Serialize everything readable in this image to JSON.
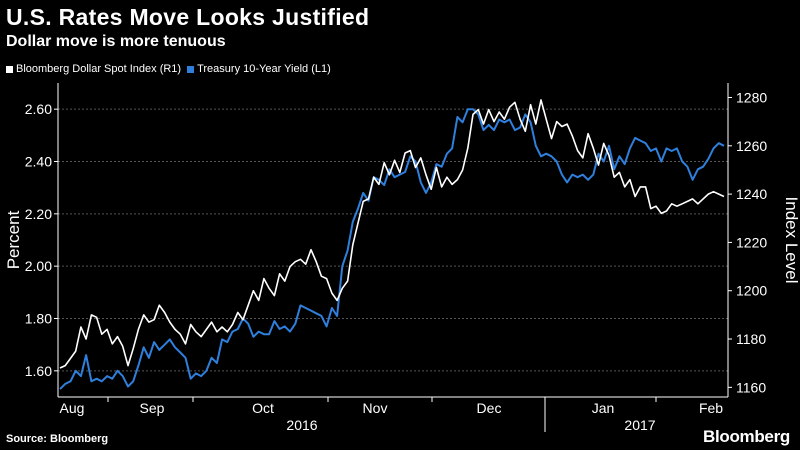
{
  "header": {
    "title": "U.S. Rates Move Looks Justified",
    "subtitle": "Dollar move is more tenuous"
  },
  "footer": {
    "source": "Source: Bloomberg",
    "logo": "Bloomberg"
  },
  "colors": {
    "background": "#000000",
    "dollar": "#ffffff",
    "treasury": "#2f7fdc",
    "grid": "#555555"
  },
  "chart_data": {
    "type": "line",
    "left_axis": {
      "label": "Percent",
      "range": [
        1.5,
        2.7
      ],
      "ticks": [
        "1.60",
        "1.80",
        "2.00",
        "2.20",
        "2.40",
        "2.60"
      ]
    },
    "right_axis": {
      "label": "Index Level",
      "range": [
        1156,
        1286
      ],
      "ticks": [
        "1160",
        "1180",
        "1200",
        "1220",
        "1240",
        "1260",
        "1280"
      ]
    },
    "x_axis": {
      "months": [
        "Aug",
        "Sep",
        "Oct",
        "Nov",
        "Dec",
        "Jan",
        "Feb"
      ],
      "years": [
        "2016",
        "2017"
      ]
    },
    "grid": true,
    "legend_position": "top-left",
    "series": [
      {
        "name": "Bloomberg Dollar Spot Index (R1)",
        "axis": "right",
        "values": [
          1168,
          1169,
          1172,
          1175,
          1185,
          1180,
          1190,
          1189,
          1182,
          1184,
          1178,
          1181,
          1177,
          1169,
          1176,
          1184,
          1190,
          1187,
          1188,
          1194,
          1191,
          1187,
          1184,
          1182,
          1178,
          1186,
          1183,
          1181,
          1184,
          1187,
          1183,
          1185,
          1183,
          1186,
          1191,
          1188,
          1194,
          1200,
          1196,
          1205,
          1201,
          1198,
          1207,
          1204,
          1210,
          1212,
          1213,
          1211,
          1217,
          1212,
          1206,
          1205,
          1199,
          1196,
          1201,
          1204,
          1219,
          1228,
          1237,
          1238,
          1247,
          1244,
          1253,
          1248,
          1254,
          1249,
          1257,
          1258,
          1251,
          1255,
          1248,
          1242,
          1251,
          1243,
          1247,
          1244,
          1246,
          1250,
          1259,
          1273,
          1275,
          1269,
          1275,
          1270,
          1274,
          1271,
          1276,
          1278,
          1271,
          1266,
          1277,
          1269,
          1279,
          1271,
          1263,
          1270,
          1268,
          1269,
          1264,
          1258,
          1255,
          1265,
          1259,
          1252,
          1261,
          1256,
          1247,
          1249,
          1243,
          1246,
          1239,
          1243,
          1243,
          1234,
          1235,
          1232,
          1233,
          1236,
          1235,
          1236,
          1237,
          1238,
          1236,
          1238,
          1240,
          1241,
          1240,
          1239
        ]
      },
      {
        "name": "Treasury 10-Year Yield (L1)",
        "axis": "left",
        "values": [
          1.53,
          1.55,
          1.56,
          1.6,
          1.58,
          1.66,
          1.56,
          1.57,
          1.56,
          1.58,
          1.57,
          1.6,
          1.58,
          1.54,
          1.56,
          1.62,
          1.69,
          1.65,
          1.71,
          1.68,
          1.7,
          1.72,
          1.69,
          1.67,
          1.65,
          1.57,
          1.59,
          1.58,
          1.6,
          1.65,
          1.63,
          1.72,
          1.71,
          1.75,
          1.76,
          1.8,
          1.78,
          1.73,
          1.75,
          1.74,
          1.74,
          1.79,
          1.76,
          1.77,
          1.75,
          1.78,
          1.85,
          1.84,
          1.83,
          1.82,
          1.81,
          1.77,
          1.84,
          1.81,
          2.0,
          2.06,
          2.17,
          2.22,
          2.28,
          2.25,
          2.34,
          2.33,
          2.31,
          2.37,
          2.34,
          2.35,
          2.36,
          2.42,
          2.4,
          2.32,
          2.28,
          2.32,
          2.39,
          2.38,
          2.43,
          2.45,
          2.57,
          2.55,
          2.6,
          2.6,
          2.58,
          2.52,
          2.54,
          2.52,
          2.56,
          2.55,
          2.56,
          2.52,
          2.53,
          2.58,
          2.55,
          2.46,
          2.42,
          2.43,
          2.42,
          2.4,
          2.35,
          2.32,
          2.35,
          2.34,
          2.35,
          2.33,
          2.35,
          2.43,
          2.4,
          2.46,
          2.37,
          2.42,
          2.39,
          2.45,
          2.49,
          2.48,
          2.47,
          2.44,
          2.45,
          2.4,
          2.45,
          2.44,
          2.45,
          2.4,
          2.38,
          2.33,
          2.37,
          2.38,
          2.41,
          2.45,
          2.47,
          2.46
        ]
      }
    ]
  }
}
